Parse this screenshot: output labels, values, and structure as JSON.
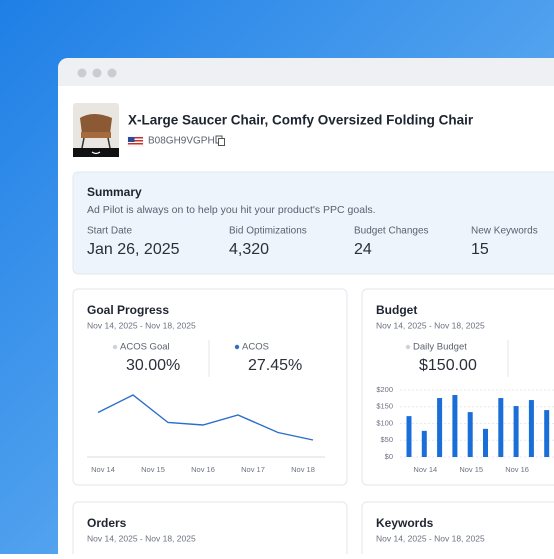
{
  "product": {
    "title": "X-Large Saucer Chair, Comfy Oversized Folding Chair",
    "asin": "B08GH9VGPH"
  },
  "summary": {
    "title": "Summary",
    "subtitle": "Ad Pilot is always on to help you hit your product's PPC goals.",
    "stats": [
      {
        "label": "Start Date",
        "value": "Jan 26, 2025"
      },
      {
        "label": "Bid Optimizations",
        "value": "4,320"
      },
      {
        "label": "Budget Changes",
        "value": "24"
      },
      {
        "label": "New Keywords",
        "value": "15"
      }
    ]
  },
  "goal_progress": {
    "title": "Goal Progress",
    "date_range": "Nov 14, 2025 - Nov 18, 2025",
    "metrics": [
      {
        "label": "ACOS Goal",
        "value": "30.00%"
      },
      {
        "label": "ACOS",
        "value": "27.45%"
      }
    ],
    "chart_data": {
      "type": "line",
      "x": [
        13.9,
        14.6,
        15.3,
        16,
        16.7,
        17.5,
        18.2
      ],
      "xlim": [
        13.7,
        18.4
      ],
      "xticks": [
        {
          "value": 14,
          "label": "Nov 14"
        },
        {
          "value": 15,
          "label": "Nov 15"
        },
        {
          "value": 16,
          "label": "Nov 16"
        },
        {
          "value": 17,
          "label": "Nov 17"
        },
        {
          "value": 18,
          "label": "Nov 18"
        }
      ],
      "ylim": [
        20,
        35
      ],
      "series": [
        {
          "color": "#2a6fc9",
          "values": [
            29.5,
            33,
            27.5,
            27,
            29,
            25.5,
            24
          ]
        }
      ]
    }
  },
  "budget": {
    "title": "Budget",
    "date_range": "Nov 14, 2025 - Nov 18, 2025",
    "metrics": [
      {
        "label": "Daily Budget",
        "value": "$150.00"
      }
    ],
    "chart_data": {
      "type": "bar",
      "categories": [
        null,
        "Nov 14",
        null,
        null,
        "Nov 15",
        null,
        null,
        "Nov 16",
        null,
        null
      ],
      "values": [
        122,
        78,
        176,
        185,
        134,
        84,
        176,
        152,
        170,
        140
      ],
      "color": "#1a6ed8",
      "ylim": [
        0,
        200
      ],
      "yticks": [
        {
          "value": 0,
          "label": "$0"
        },
        {
          "value": 50,
          "label": "$50"
        },
        {
          "value": 100,
          "label": "$100"
        },
        {
          "value": 150,
          "label": "$150"
        },
        {
          "value": 200,
          "label": "$200"
        }
      ],
      "grid": true
    }
  },
  "orders": {
    "title": "Orders",
    "date_range": "Nov 14, 2025 - Nov 18, 2025"
  },
  "keywords": {
    "title": "Keywords",
    "date_range": "Nov 14, 2025 - Nov 18, 2025"
  }
}
